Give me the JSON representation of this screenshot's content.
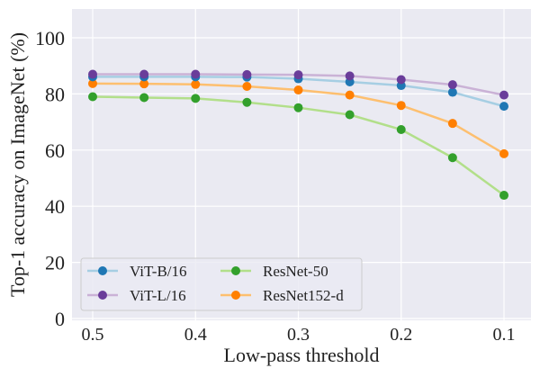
{
  "chart_data": {
    "type": "line",
    "title": "",
    "xlabel": "Low-pass threshold",
    "ylabel": "Top-1 accuracy on ImageNet (%)",
    "x": [
      0.5,
      0.45,
      0.4,
      0.35,
      0.3,
      0.25,
      0.2,
      0.15,
      0.1
    ],
    "xlim": [
      0.52,
      0.074
    ],
    "ylim": [
      0,
      110
    ],
    "x_reversed": true,
    "xticks": [
      0.5,
      0.4,
      0.3,
      0.2,
      0.1
    ],
    "xtick_labels": [
      "0.5",
      "0.4",
      "0.3",
      "0.2",
      "0.1"
    ],
    "yticks": [
      0,
      20,
      40,
      60,
      80,
      100
    ],
    "ytick_labels": [
      "0",
      "20",
      "40",
      "60",
      "80",
      "100"
    ],
    "grid": true,
    "legend_placement": "lower-left",
    "background": "#eaeaf2",
    "series": [
      {
        "name": "ViT-B/16",
        "marker_color": "#1f77b4",
        "line_color": "#a6cee3",
        "values": [
          86.1,
          86.1,
          86.1,
          86.0,
          85.4,
          84.3,
          83.0,
          80.6,
          75.6
        ]
      },
      {
        "name": "ViT-L/16",
        "marker_color": "#6a3d9a",
        "line_color": "#cab2d6",
        "values": [
          87.0,
          87.0,
          87.0,
          86.9,
          86.8,
          86.4,
          85.1,
          83.3,
          79.6
        ]
      },
      {
        "name": "ResNet-50",
        "marker_color": "#33a02c",
        "line_color": "#b2df8a",
        "values": [
          79.0,
          78.7,
          78.4,
          77.0,
          75.1,
          72.6,
          67.3,
          57.3,
          43.9
        ]
      },
      {
        "name": "ResNet152-d",
        "marker_color": "#ff7f00",
        "line_color": "#fdbf6f",
        "values": [
          83.7,
          83.6,
          83.4,
          82.7,
          81.4,
          79.6,
          75.9,
          69.5,
          58.7
        ]
      }
    ]
  }
}
